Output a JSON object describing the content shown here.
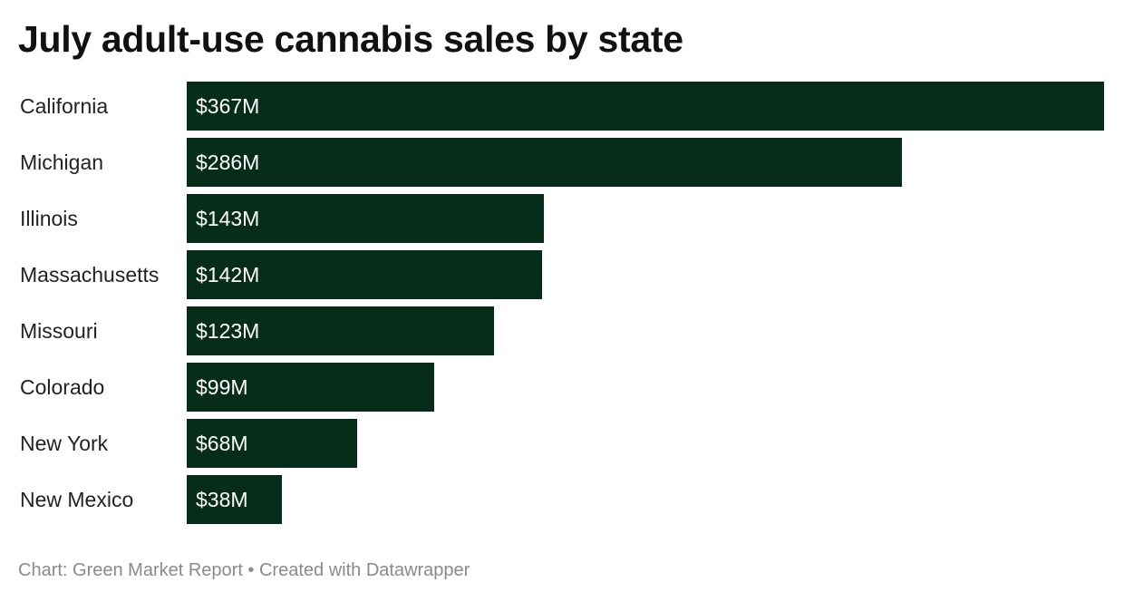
{
  "chart_data": {
    "type": "bar",
    "orientation": "horizontal",
    "title": "July adult-use cannabis sales by state",
    "categories": [
      "California",
      "Michigan",
      "Illinois",
      "Massachusetts",
      "Missouri",
      "Colorado",
      "New York",
      "New Mexico"
    ],
    "values": [
      367,
      286,
      143,
      142,
      123,
      99,
      68,
      38
    ],
    "value_labels": [
      "$367M",
      "$286M",
      "$143M",
      "$142M",
      "$123M",
      "$99M",
      "$68M",
      "$38M"
    ],
    "unit": "$M",
    "xlim": [
      0,
      367
    ],
    "grid": false,
    "bar_color": "#062d19",
    "label_color": "#ffffff"
  },
  "footer": {
    "credit": "Chart: Green Market Report • Created with Datawrapper"
  }
}
